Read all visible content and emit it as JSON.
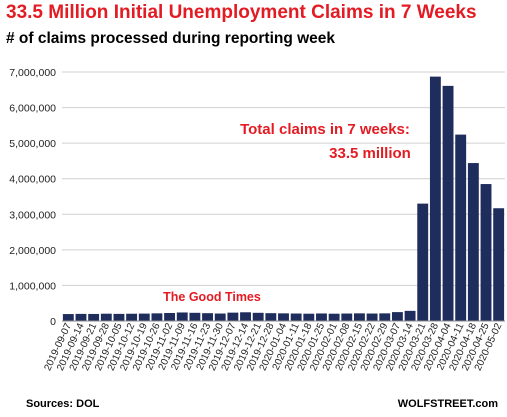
{
  "header": {
    "title": "33.5 Million Initial Unemployment Claims in 7 Weeks",
    "subtitle": "# of claims processed during reporting week"
  },
  "footer": {
    "source": "Sources: DOL",
    "brand": "WOLFSTREET.com"
  },
  "colors": {
    "bar": "#1f2d5c",
    "accent": "#e31b23",
    "grid": "#d0d0d0"
  },
  "chart_data": {
    "type": "bar",
    "title": "33.5 Million Initial Unemployment Claims in 7 Weeks",
    "subtitle": "# of claims processed during reporting week",
    "ylim": [
      0,
      7000000
    ],
    "yticks": [
      0,
      1000000,
      2000000,
      3000000,
      4000000,
      5000000,
      6000000,
      7000000
    ],
    "ytick_labels": [
      "0",
      "1,000,000",
      "2,000,000",
      "3,000,000",
      "4,000,000",
      "5,000,000",
      "6,000,000",
      "7,000,000"
    ],
    "grid": true,
    "categories": [
      "2019-09-07",
      "2019-09-14",
      "2019-09-21",
      "2019-09-28",
      "2019-10-05",
      "2019-10-12",
      "2019-10-19",
      "2019-10-26",
      "2019-11-02",
      "2019-11-09",
      "2019-11-16",
      "2019-11-23",
      "2019-11-30",
      "2019-12-07",
      "2019-12-14",
      "2019-12-21",
      "2019-12-28",
      "2020-01-04",
      "2020-01-11",
      "2020-01-18",
      "2020-01-25",
      "2020-02-01",
      "2020-02-08",
      "2020-02-15",
      "2020-02-22",
      "2020-02-29",
      "2020-03-07",
      "2020-03-14",
      "2020-03-21",
      "2020-03-28",
      "2020-04-04",
      "2020-04-11",
      "2020-04-18",
      "2020-04-25",
      "2020-05-02"
    ],
    "tick_labels": [
      "2019-09-07",
      "2019-09-14",
      "2019-09-21",
      "2019-09-28",
      "2019-10-05",
      "2019-10-12",
      "2019-10-19",
      "2019-10-26",
      "2019-11-02",
      "2019-11-09",
      "2019-11-16",
      "2019-11-23",
      "2019-11-30",
      "2019-12-07",
      "2019-12-14",
      "2019-12-21",
      "2019-12-28",
      "2020-01-04",
      "2020-01-11",
      "2020-01-18",
      "2020-01-25",
      "2020-02-01",
      "2020-02-08",
      "2020-02-15",
      "2020-02-22",
      "2020-02-29",
      "2020-03-07",
      "2020-03-14",
      "2020-03-21",
      "2020-03-28",
      "2020-04-04",
      "2020-04-11",
      "2020-04-18",
      "2020-04-25",
      "2020-05-02"
    ],
    "values": [
      195000,
      200000,
      198000,
      205000,
      200000,
      204000,
      208000,
      215000,
      225000,
      240000,
      230000,
      220000,
      210000,
      235000,
      245000,
      230000,
      220000,
      215000,
      210000,
      205000,
      212000,
      205000,
      210000,
      215000,
      210000,
      215000,
      250000,
      285000,
      3300000,
      6870000,
      6610000,
      5240000,
      4440000,
      3850000,
      3170000
    ],
    "annotations": [
      {
        "text_lines": [
          "Total claims in 7 weeks:",
          "33.5 million"
        ]
      },
      {
        "text_lines": [
          "The Good Times"
        ]
      }
    ]
  }
}
